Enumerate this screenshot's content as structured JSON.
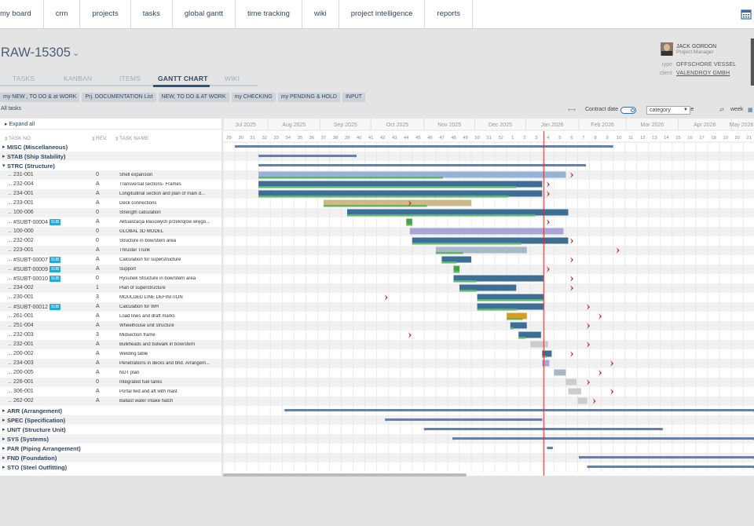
{
  "nav": [
    "my board",
    "crm",
    "projects",
    "tasks",
    "global gantt",
    "time tracking",
    "wiki",
    "project intelligence",
    "reports"
  ],
  "project": {
    "title": "RAW-15305"
  },
  "pm": {
    "name": "JACK GORDON",
    "role": "Project Manager"
  },
  "meta": {
    "type_label": "type",
    "type_value": "OFFSCHORE VESSEL",
    "client_label": "client",
    "client_value": "VALENDROY GMBH"
  },
  "tabs": [
    "TASKS",
    "KANBAN",
    "ITEMS",
    "GANTT CHART",
    "WIKI"
  ],
  "filters": [
    "my NEW , TO DO & at WORK",
    "Prj. DOCUMENTATION List",
    "NEW, TO DO & AT WORK",
    "my CHECKING",
    "my PENDING & HOLD",
    "INPUT"
  ],
  "all_tasks": "All tasks",
  "toolbar": {
    "contract_date": "Contract date",
    "category": "category",
    "due_date": "due date",
    "week": "week"
  },
  "expand_all": "Expand all",
  "columns": {
    "task_no": "TASK NO",
    "rev": "REV.",
    "task_name": "TASK NAME"
  },
  "months": [
    "Jul 2025",
    "Aug 2025",
    "Sep 2025",
    "Oct 2025",
    "Nov 2025",
    "Dec 2025",
    "Jan 2026",
    "Feb 2026",
    "Mar 2026",
    "Apr 2026",
    "May 2026"
  ],
  "weeks": [
    "29",
    "30",
    "31",
    "32",
    "33",
    "34",
    "35",
    "36",
    "37",
    "38",
    "39",
    "40",
    "41",
    "42",
    "43",
    "44",
    "45",
    "46",
    "47",
    "48",
    "49",
    "50",
    "51",
    "52",
    "1",
    "2",
    "3",
    "4",
    "5",
    "6",
    "7",
    "8",
    "9",
    "10",
    "11",
    "12",
    "13",
    "14",
    "15",
    "16",
    "17",
    "18",
    "19",
    "20",
    "21"
  ],
  "rows": [
    {
      "type": "group",
      "label": "MISC (Miscellaneous)",
      "open": false
    },
    {
      "type": "group",
      "label": "STAB (Ship Stability)",
      "open": false
    },
    {
      "type": "group",
      "label": "STRC (Structure)",
      "open": true
    },
    {
      "type": "task",
      "no": "231-001",
      "rev": "0",
      "name": "Shell expansion"
    },
    {
      "type": "task",
      "no": "232-004",
      "rev": "A",
      "name": "Transversal sections- Frames"
    },
    {
      "type": "task",
      "no": "234-001",
      "rev": "A",
      "name": "Longitudinal section and plan of main d..."
    },
    {
      "type": "task",
      "no": "233-001",
      "rev": "A",
      "name": "Deck connections"
    },
    {
      "type": "task",
      "no": "100-006",
      "rev": "0",
      "name": "Strength calculation"
    },
    {
      "type": "task",
      "no": "#SUBT-00004",
      "rev": "A",
      "name": "Aktualizacja klasowych przekrojów wręgo...",
      "sub": true
    },
    {
      "type": "task",
      "no": "100-000",
      "rev": "0",
      "name": "GLOBAL 3D MODEL"
    },
    {
      "type": "task",
      "no": "232-002",
      "rev": "0",
      "name": "Structure in bow/stern area"
    },
    {
      "type": "task",
      "no": "223-001",
      "rev": "A",
      "name": "Thruster Trunk"
    },
    {
      "type": "task",
      "no": "#SUBT-00007",
      "rev": "A",
      "name": "Calculation for superstructure",
      "sub": true
    },
    {
      "type": "task",
      "no": "#SUBT-00009",
      "rev": "A",
      "name": "Support",
      "sub": true
    },
    {
      "type": "task",
      "no": "#SUBT-00010",
      "rev": "0",
      "name": "Rysunek Structure in bow/stern area",
      "sub": true
    },
    {
      "type": "task",
      "no": "234-002",
      "rev": "1",
      "name": "Plan of superstructure"
    },
    {
      "type": "task",
      "no": "230-001",
      "rev": "3",
      "name": "MOULDED LINE DEFINITION"
    },
    {
      "type": "task",
      "no": "#SUBT-00012",
      "rev": "A",
      "name": "Calculation for WH",
      "sub": true
    },
    {
      "type": "task",
      "no": "261-001",
      "rev": "A",
      "name": "Load lines and draft marks"
    },
    {
      "type": "task",
      "no": "251-004",
      "rev": "A",
      "name": "Wheelhouse unit structure"
    },
    {
      "type": "task",
      "no": "232-003",
      "rev": "3",
      "name": "Midsection frame"
    },
    {
      "type": "task",
      "no": "232-001",
      "rev": "A",
      "name": "Bulkheads and bulwark in bow/stern"
    },
    {
      "type": "task",
      "no": "200-002",
      "rev": "A",
      "name": "Welding table"
    },
    {
      "type": "task",
      "no": "234-003",
      "rev": "A",
      "name": "Penetrations in decks and bhd. Arrangem..."
    },
    {
      "type": "task",
      "no": "200-005",
      "rev": "A",
      "name": "NDT plan"
    },
    {
      "type": "task",
      "no": "226-001",
      "rev": "0",
      "name": "Integrated fuel tanks"
    },
    {
      "type": "task",
      "no": "306-001",
      "rev": "A",
      "name": "Portal fwd and aft with mast"
    },
    {
      "type": "task",
      "no": "262-002",
      "rev": "A",
      "name": "Ballast water intake hatch"
    },
    {
      "type": "group",
      "label": "ARR (Arrangement)",
      "open": false
    },
    {
      "type": "group",
      "label": "SPEC (Specification)",
      "open": false
    },
    {
      "type": "group",
      "label": "UNIT (Structure Unit)",
      "open": false
    },
    {
      "type": "group",
      "label": "SYS (Systems)",
      "open": false
    },
    {
      "type": "group",
      "label": "PAR (Piping Arrangement)",
      "open": false
    },
    {
      "type": "group",
      "label": "FND (Foundation)",
      "open": false
    },
    {
      "type": "group",
      "label": "STO (Steel Outfitting)",
      "open": false
    }
  ],
  "gantt_bars": [
    {
      "row": 0,
      "kind": "summary",
      "start": 1,
      "end": 33
    },
    {
      "row": 1,
      "kind": "summary",
      "start": 3,
      "end": 11.3
    },
    {
      "row": 2,
      "kind": "summary",
      "start": 3,
      "end": 30.7
    },
    {
      "row": 3,
      "kind": "task",
      "start": 3,
      "end": 29,
      "color": "#95b3d7",
      "progress": 0.6,
      "deadline": 29.1
    },
    {
      "row": 4,
      "kind": "task",
      "start": 3,
      "end": 27,
      "color": "#3d6e96",
      "progress": 0.91,
      "deadline": 27.1
    },
    {
      "row": 5,
      "kind": "task",
      "start": 3,
      "end": 27,
      "color": "#3d6e96",
      "progress": 0.88,
      "deadline": 27.1
    },
    {
      "row": 6,
      "kind": "task",
      "start": 8.5,
      "end": 21,
      "color": "#cdb887",
      "progress": 0.7,
      "deadline": 15.4
    },
    {
      "row": 7,
      "kind": "task",
      "start": 10.5,
      "end": 29.2,
      "color": "#3d6e96",
      "progress": 0.85
    },
    {
      "row": 8,
      "kind": "task",
      "start": 15.5,
      "end": 16,
      "color": "#48a048",
      "progress": 1,
      "deadline": 27.1
    },
    {
      "row": 9,
      "kind": "task",
      "start": 15.8,
      "end": 28.8,
      "color": "#a8a6d8",
      "progress": 0
    },
    {
      "row": 10,
      "kind": "task",
      "start": 16,
      "end": 29.2,
      "color": "#3d6e96",
      "progress": 0.7,
      "deadline": 29.1
    },
    {
      "row": 11,
      "kind": "task",
      "start": 18,
      "end": 25.7,
      "color": "#a8b8c8",
      "progress": 0.3,
      "deadline": 33
    },
    {
      "row": 12,
      "kind": "task",
      "start": 18.5,
      "end": 21,
      "color": "#3d6e96",
      "progress": 0.5,
      "deadline": 29.1
    },
    {
      "row": 13,
      "kind": "task",
      "start": 19.5,
      "end": 20,
      "color": "#48a048",
      "progress": 1,
      "deadline": 27.1
    },
    {
      "row": 14,
      "kind": "task",
      "start": 19.5,
      "end": 27.1,
      "color": "#3d6e96",
      "progress": 0.25,
      "deadline": 29.1
    },
    {
      "row": 15,
      "kind": "task",
      "start": 20,
      "end": 24.8,
      "color": "#3d6e96",
      "progress": 0.3,
      "deadline": 29.1
    },
    {
      "row": 16,
      "kind": "task",
      "start": 21.5,
      "end": 27.1,
      "color": "#3d6e96",
      "progress": 1,
      "deadline": 13.4
    },
    {
      "row": 17,
      "kind": "task",
      "start": 21.5,
      "end": 27.1,
      "color": "#3d6e96",
      "progress": 0.6,
      "deadline": 30.5
    },
    {
      "row": 18,
      "kind": "task",
      "start": 24,
      "end": 25.7,
      "color": "#d99a20",
      "progress": 0.8,
      "deadline": 31.5
    },
    {
      "row": 19,
      "kind": "task",
      "start": 24.3,
      "end": 25.7,
      "color": "#3d6e96",
      "progress": 0.2,
      "deadline": 30.5
    },
    {
      "row": 20,
      "kind": "task",
      "start": 25,
      "end": 26.9,
      "color": "#3d6e96",
      "progress": 0.3,
      "deadline": 15.4
    },
    {
      "row": 21,
      "kind": "task",
      "start": 26,
      "end": 27.5,
      "color": "#cccccc",
      "progress": 0,
      "deadline": 30.5
    },
    {
      "row": 22,
      "kind": "task",
      "start": 27,
      "end": 27.8,
      "color": "#3d6e96",
      "progress": 0.5,
      "deadline": 29.1
    },
    {
      "row": 23,
      "kind": "task",
      "start": 27,
      "end": 27.6,
      "color": "#a8a6d8",
      "progress": 0,
      "deadline": 32.5
    },
    {
      "row": 24,
      "kind": "task",
      "start": 28,
      "end": 29,
      "color": "#a8b8c8",
      "progress": 0,
      "deadline": 31.5
    },
    {
      "row": 25,
      "kind": "task",
      "start": 29,
      "end": 29.9,
      "color": "#cccccc",
      "progress": 0,
      "deadline": 30.5
    },
    {
      "row": 26,
      "kind": "task",
      "start": 29.2,
      "end": 30.3,
      "color": "#cccccc",
      "progress": 0,
      "deadline": 32.5
    },
    {
      "row": 27,
      "kind": "task",
      "start": 30,
      "end": 30.8,
      "color": "#cccccc",
      "progress": 0,
      "deadline": 31
    },
    {
      "row": 28,
      "kind": "summary",
      "start": 5.2,
      "end": 45
    },
    {
      "row": 29,
      "kind": "summary",
      "start": 13.7,
      "end": 27
    },
    {
      "row": 30,
      "kind": "summary",
      "start": 17,
      "end": 37.2
    },
    {
      "row": 31,
      "kind": "summary",
      "start": 19.4,
      "end": 45
    },
    {
      "row": 32,
      "kind": "summary",
      "start": 27.4,
      "end": 27.9
    },
    {
      "row": 33,
      "kind": "summary",
      "start": 30.1,
      "end": 45
    },
    {
      "row": 34,
      "kind": "summary",
      "start": 30.8,
      "end": 45
    }
  ],
  "today_week": 27
}
